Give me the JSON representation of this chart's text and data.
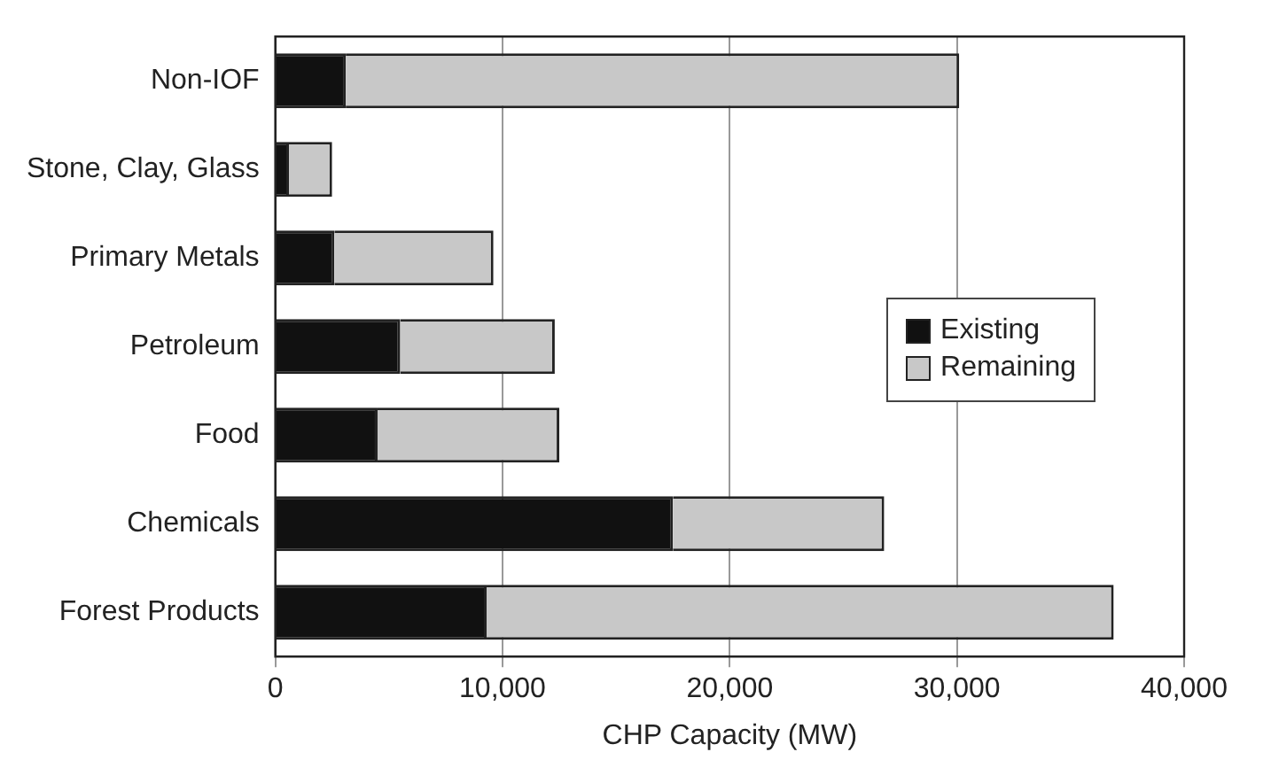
{
  "chart_data": {
    "type": "bar",
    "orientation": "horizontal",
    "stacked": true,
    "xlabel": "CHP Capacity (MW)",
    "categories": [
      "Non-IOF",
      "Stone, Clay, Glass",
      "Primary Metals",
      "Petroleum",
      "Food",
      "Chemicals",
      "Forest Products"
    ],
    "series": [
      {
        "name": "Existing",
        "color": "#111111",
        "values": [
          3100,
          600,
          2600,
          5500,
          4500,
          17500,
          9300
        ]
      },
      {
        "name": "Remaining",
        "color": "#c8c8c8",
        "values": [
          27000,
          1900,
          7000,
          6800,
          8000,
          9300,
          27600
        ]
      }
    ],
    "xlim": [
      0,
      40000
    ],
    "xticks": [
      {
        "value": 0,
        "label": "0"
      },
      {
        "value": 10000,
        "label": "10,000"
      },
      {
        "value": 20000,
        "label": "20,000"
      },
      {
        "value": 30000,
        "label": "30,000"
      },
      {
        "value": 40000,
        "label": "40,000"
      }
    ],
    "grid": "x",
    "legend": "right"
  }
}
